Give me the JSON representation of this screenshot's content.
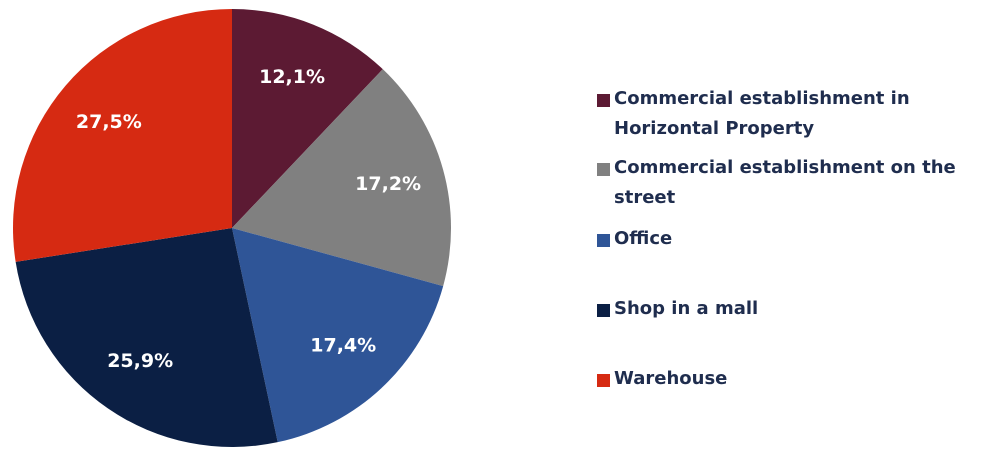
{
  "chart_data": {
    "type": "pie",
    "categories": [
      "Commercial establishment in Horizontal Property",
      "Commercial establishment on the street",
      "Office",
      "Shop in a mall",
      "Warehouse"
    ],
    "values": [
      12.1,
      17.2,
      17.4,
      25.9,
      27.5
    ],
    "value_labels": [
      "12,1%",
      "17,2%",
      "17,4%",
      "25,9%",
      "27,5%"
    ],
    "colors": [
      "#5c1a33",
      "#808080",
      "#2f5597",
      "#0b1f44",
      "#d62a12"
    ],
    "legend": "right"
  }
}
